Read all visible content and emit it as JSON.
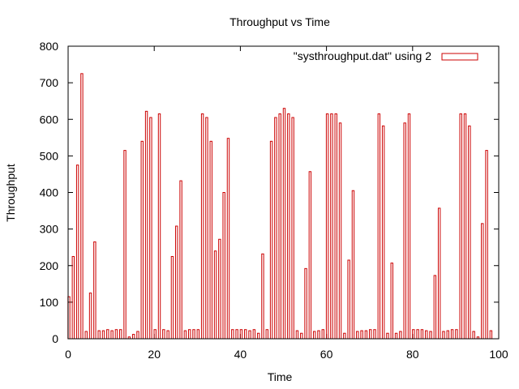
{
  "chart_data": {
    "type": "bar",
    "title": "Throughput vs Time",
    "xlabel": "Time",
    "ylabel": "Throughput",
    "xlim": [
      0,
      100
    ],
    "ylim": [
      0,
      800
    ],
    "xticks": [
      0,
      20,
      40,
      60,
      80,
      100
    ],
    "yticks": [
      0,
      100,
      200,
      300,
      400,
      500,
      600,
      700,
      800
    ],
    "legend_position": "top-right",
    "grid": false,
    "series": [
      {
        "name": "\"systhroughput.dat\" using 2",
        "color": "#cc0000",
        "x": [
          0,
          1,
          2,
          3,
          4,
          5,
          6,
          7,
          8,
          9,
          10,
          11,
          12,
          13,
          14,
          15,
          16,
          17,
          18,
          19,
          20,
          21,
          22,
          23,
          24,
          25,
          26,
          27,
          28,
          29,
          30,
          31,
          32,
          33,
          34,
          35,
          36,
          37,
          38,
          39,
          40,
          41,
          42,
          43,
          44,
          45,
          46,
          47,
          48,
          49,
          50,
          51,
          52,
          53,
          54,
          55,
          56,
          57,
          58,
          59,
          60,
          61,
          62,
          63,
          64,
          65,
          66,
          67,
          68,
          69,
          70,
          71,
          72,
          73,
          74,
          75,
          76,
          77,
          78,
          79,
          80,
          81,
          82,
          83,
          84,
          85,
          86,
          87,
          88,
          89,
          90,
          91,
          92,
          93,
          94,
          95,
          96,
          97,
          98
        ],
        "values": [
          115,
          225,
          475,
          725,
          20,
          125,
          265,
          22,
          22,
          25,
          22,
          25,
          25,
          515,
          5,
          12,
          20,
          540,
          622,
          605,
          25,
          615,
          25,
          22,
          225,
          308,
          432,
          22,
          25,
          25,
          25,
          615,
          605,
          540,
          240,
          272,
          400,
          548,
          25,
          25,
          25,
          25,
          22,
          25,
          15,
          232,
          25,
          540,
          605,
          615,
          630,
          615,
          605,
          22,
          15,
          192,
          457,
          20,
          22,
          25,
          615,
          615,
          615,
          590,
          15,
          215,
          405,
          20,
          22,
          22,
          25,
          25,
          615,
          582,
          15,
          207,
          15,
          20,
          590,
          615,
          25,
          25,
          25,
          22,
          20,
          173,
          357,
          20,
          22,
          25,
          25,
          615,
          615,
          582,
          20,
          5,
          315,
          515,
          22
        ]
      }
    ]
  }
}
